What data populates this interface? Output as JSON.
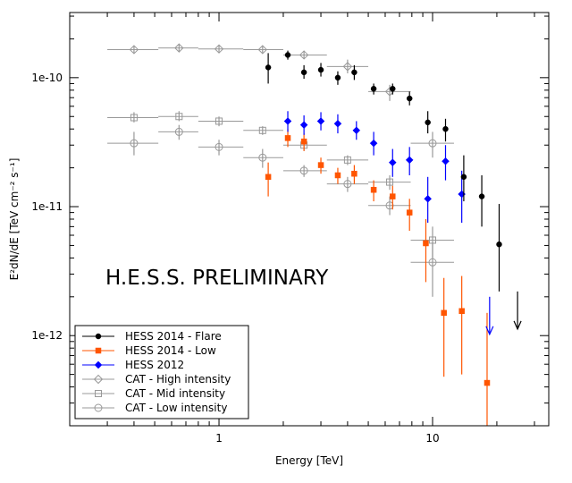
{
  "chart_data": {
    "type": "scatter",
    "title": "",
    "xlabel": "Energy [TeV]",
    "ylabel": "E²dN/dE [TeV cm⁻² s⁻¹]",
    "xscale": "log",
    "yscale": "log",
    "xlim": [
      0.2,
      35
    ],
    "ylim": [
      2e-13,
      3.2e-10
    ],
    "xticks": [
      {
        "value": 1,
        "label": "1"
      },
      {
        "value": 10,
        "label": "10"
      }
    ],
    "yticks": [
      {
        "value": 1e-12,
        "label": "1e-12"
      },
      {
        "value": 1e-11,
        "label": "1e-11"
      },
      {
        "value": 1e-10,
        "label": "1e-10"
      }
    ],
    "annotation": "H.E.S.S. PRELIMINARY",
    "legend_position": "bottom-left",
    "series": [
      {
        "name": "HESS 2014 - Flare",
        "color": "#000000",
        "marker": "filled-circle",
        "points": [
          {
            "x": 1.7,
            "y": 1.2e-10,
            "ylo": 9e-11,
            "yhi": 1.55e-10
          },
          {
            "x": 2.1,
            "y": 1.5e-10,
            "ylo": 1.38e-10,
            "yhi": 1.62e-10
          },
          {
            "x": 2.5,
            "y": 1.1e-10,
            "ylo": 9.8e-11,
            "yhi": 1.25e-10
          },
          {
            "x": 3.0,
            "y": 1.15e-10,
            "ylo": 1.02e-10,
            "yhi": 1.3e-10
          },
          {
            "x": 3.6,
            "y": 1e-10,
            "ylo": 8.8e-11,
            "yhi": 1.12e-10
          },
          {
            "x": 4.3,
            "y": 1.1e-10,
            "ylo": 9.6e-11,
            "yhi": 1.25e-10
          },
          {
            "x": 5.3,
            "y": 8.2e-11,
            "ylo": 7.4e-11,
            "yhi": 9e-11
          },
          {
            "x": 6.5,
            "y": 8.2e-11,
            "ylo": 7.4e-11,
            "yhi": 9e-11
          },
          {
            "x": 7.8,
            "y": 6.9e-11,
            "ylo": 6.1e-11,
            "yhi": 7.8e-11
          },
          {
            "x": 9.5,
            "y": 4.5e-11,
            "ylo": 3.7e-11,
            "yhi": 5.5e-11
          },
          {
            "x": 11.5,
            "y": 4e-11,
            "ylo": 3.2e-11,
            "yhi": 4.8e-11
          },
          {
            "x": 14.0,
            "y": 1.7e-11,
            "ylo": 1.1e-11,
            "yhi": 2.5e-11
          },
          {
            "x": 17.0,
            "y": 1.2e-11,
            "ylo": 7e-12,
            "yhi": 1.75e-11
          },
          {
            "x": 20.5,
            "y": 5.1e-12,
            "ylo": 2.2e-12,
            "yhi": 1.05e-11
          }
        ],
        "upper_limits": [
          {
            "x": 25.0,
            "y": 2.2e-12
          }
        ]
      },
      {
        "name": "HESS 2014 - Low",
        "color": "#ff5500",
        "marker": "filled-square",
        "points": [
          {
            "x": 1.7,
            "y": 1.7e-11,
            "ylo": 1.2e-11,
            "yhi": 2.2e-11
          },
          {
            "x": 2.1,
            "y": 3.4e-11,
            "ylo": 2.9e-11,
            "yhi": 4e-11
          },
          {
            "x": 2.5,
            "y": 3.2e-11,
            "ylo": 2.7e-11,
            "yhi": 3.7e-11
          },
          {
            "x": 3.0,
            "y": 2.1e-11,
            "ylo": 1.8e-11,
            "yhi": 2.4e-11
          },
          {
            "x": 3.6,
            "y": 1.75e-11,
            "ylo": 1.5e-11,
            "yhi": 2e-11
          },
          {
            "x": 4.3,
            "y": 1.8e-11,
            "ylo": 1.5e-11,
            "yhi": 2.1e-11
          },
          {
            "x": 5.3,
            "y": 1.35e-11,
            "ylo": 1.1e-11,
            "yhi": 1.6e-11
          },
          {
            "x": 6.5,
            "y": 1.2e-11,
            "ylo": 9.5e-12,
            "yhi": 1.45e-11
          },
          {
            "x": 7.8,
            "y": 9e-12,
            "ylo": 6.5e-12,
            "yhi": 1.15e-11
          },
          {
            "x": 9.3,
            "y": 5.2e-12,
            "ylo": 2.6e-12,
            "yhi": 8e-12
          },
          {
            "x": 11.3,
            "y": 1.5e-12,
            "ylo": 4.8e-13,
            "yhi": 2.8e-12
          },
          {
            "x": 13.7,
            "y": 1.55e-12,
            "ylo": 5e-13,
            "yhi": 2.9e-12
          },
          {
            "x": 18.0,
            "y": 4.3e-13,
            "ylo": 2e-13,
            "yhi": 1.5e-12
          }
        ],
        "upper_limits": []
      },
      {
        "name": "HESS 2012",
        "color": "#0000ff",
        "marker": "filled-diamond",
        "points": [
          {
            "x": 2.1,
            "y": 4.6e-11,
            "ylo": 3.8e-11,
            "yhi": 5.5e-11
          },
          {
            "x": 2.5,
            "y": 4.3e-11,
            "ylo": 3.6e-11,
            "yhi": 5.1e-11
          },
          {
            "x": 3.0,
            "y": 4.6e-11,
            "ylo": 3.9e-11,
            "yhi": 5.4e-11
          },
          {
            "x": 3.6,
            "y": 4.4e-11,
            "ylo": 3.7e-11,
            "yhi": 5.2e-11
          },
          {
            "x": 4.4,
            "y": 3.9e-11,
            "ylo": 3.3e-11,
            "yhi": 4.6e-11
          },
          {
            "x": 5.3,
            "y": 3.1e-11,
            "ylo": 2.5e-11,
            "yhi": 3.8e-11
          },
          {
            "x": 6.5,
            "y": 2.2e-11,
            "ylo": 1.7e-11,
            "yhi": 2.8e-11
          },
          {
            "x": 7.8,
            "y": 2.3e-11,
            "ylo": 1.75e-11,
            "yhi": 2.9e-11
          },
          {
            "x": 9.5,
            "y": 1.15e-11,
            "ylo": 7.5e-12,
            "yhi": 1.7e-11
          },
          {
            "x": 11.5,
            "y": 2.25e-11,
            "ylo": 1.6e-11,
            "yhi": 3e-11
          },
          {
            "x": 13.7,
            "y": 1.25e-11,
            "ylo": 7.5e-12,
            "yhi": 1.9e-11
          }
        ],
        "upper_limits": [
          {
            "x": 18.5,
            "y": 2e-12
          }
        ]
      },
      {
        "name": "CAT - High intensity",
        "color": "#999999",
        "marker": "open-diamond",
        "points": [
          {
            "x": 0.4,
            "y": 1.65e-10,
            "ylo": 1.55e-10,
            "yhi": 1.75e-10,
            "xlo": 0.3,
            "xhi": 0.52
          },
          {
            "x": 0.65,
            "y": 1.7e-10,
            "ylo": 1.6e-10,
            "yhi": 1.8e-10,
            "xlo": 0.52,
            "xhi": 0.8
          },
          {
            "x": 1.0,
            "y": 1.67e-10,
            "ylo": 1.57e-10,
            "yhi": 1.77e-10,
            "xlo": 0.8,
            "xhi": 1.3
          },
          {
            "x": 1.6,
            "y": 1.65e-10,
            "ylo": 1.55e-10,
            "yhi": 1.75e-10,
            "xlo": 1.3,
            "xhi": 2.0
          },
          {
            "x": 2.5,
            "y": 1.5e-10,
            "ylo": 1.4e-10,
            "yhi": 1.6e-10,
            "xlo": 2.0,
            "xhi": 3.2
          },
          {
            "x": 4.0,
            "y": 1.22e-10,
            "ylo": 1.08e-10,
            "yhi": 1.38e-10,
            "xlo": 3.2,
            "xhi": 5.0
          },
          {
            "x": 6.3,
            "y": 7.8e-11,
            "ylo": 6.6e-11,
            "yhi": 8.8e-11,
            "xlo": 5.0,
            "xhi": 7.9
          }
        ],
        "upper_limits": []
      },
      {
        "name": "CAT - Mid intensity",
        "color": "#999999",
        "marker": "open-square",
        "points": [
          {
            "x": 0.4,
            "y": 4.9e-11,
            "ylo": 4.5e-11,
            "yhi": 5.4e-11,
            "xlo": 0.3,
            "xhi": 0.52
          },
          {
            "x": 0.65,
            "y": 5e-11,
            "ylo": 4.6e-11,
            "yhi": 5.5e-11,
            "xlo": 0.52,
            "xhi": 0.8
          },
          {
            "x": 1.0,
            "y": 4.6e-11,
            "ylo": 4.2e-11,
            "yhi": 5e-11,
            "xlo": 0.8,
            "xhi": 1.3
          },
          {
            "x": 1.6,
            "y": 3.9e-11,
            "ylo": 3.6e-11,
            "yhi": 4.2e-11,
            "xlo": 1.3,
            "xhi": 2.0
          },
          {
            "x": 2.5,
            "y": 3e-11,
            "ylo": 2.7e-11,
            "yhi": 3.3e-11,
            "xlo": 2.0,
            "xhi": 3.2
          },
          {
            "x": 4.0,
            "y": 2.3e-11,
            "ylo": 2.1e-11,
            "yhi": 2.5e-11,
            "xlo": 3.2,
            "xhi": 5.0
          },
          {
            "x": 6.3,
            "y": 1.55e-11,
            "ylo": 1.35e-11,
            "yhi": 1.75e-11,
            "xlo": 5.0,
            "xhi": 7.9
          },
          {
            "x": 10.0,
            "y": 5.5e-12,
            "ylo": 4e-12,
            "yhi": 7e-12,
            "xlo": 7.9,
            "xhi": 12.6
          }
        ],
        "upper_limits": []
      },
      {
        "name": "CAT - Low intensity",
        "color": "#999999",
        "marker": "open-circle",
        "points": [
          {
            "x": 0.4,
            "y": 3.1e-11,
            "ylo": 2.5e-11,
            "yhi": 3.8e-11,
            "xlo": 0.3,
            "xhi": 0.52
          },
          {
            "x": 0.65,
            "y": 3.8e-11,
            "ylo": 3.3e-11,
            "yhi": 4.3e-11,
            "xlo": 0.52,
            "xhi": 0.8
          },
          {
            "x": 1.0,
            "y": 2.9e-11,
            "ylo": 2.5e-11,
            "yhi": 3.3e-11,
            "xlo": 0.8,
            "xhi": 1.3
          },
          {
            "x": 1.6,
            "y": 2.4e-11,
            "ylo": 2e-11,
            "yhi": 2.8e-11,
            "xlo": 1.3,
            "xhi": 2.0
          },
          {
            "x": 2.5,
            "y": 1.9e-11,
            "ylo": 1.7e-11,
            "yhi": 2.1e-11,
            "xlo": 2.0,
            "xhi": 3.2
          },
          {
            "x": 4.0,
            "y": 1.5e-11,
            "ylo": 1.3e-11,
            "yhi": 1.7e-11,
            "xlo": 3.2,
            "xhi": 5.0
          },
          {
            "x": 6.3,
            "y": 1.02e-11,
            "ylo": 8.6e-12,
            "yhi": 1.2e-11,
            "xlo": 5.0,
            "xhi": 7.9
          },
          {
            "x": 10.0,
            "y": 3.1e-11,
            "ylo": 2.4e-11,
            "yhi": 3.8e-11,
            "xlo": 7.9,
            "xhi": 12.6
          },
          {
            "x": 10.0,
            "y": 3.7e-12,
            "ylo": 2e-12,
            "yhi": 5.3e-12,
            "xlo": 7.9,
            "xhi": 12.6
          }
        ],
        "upper_limits": []
      }
    ]
  }
}
